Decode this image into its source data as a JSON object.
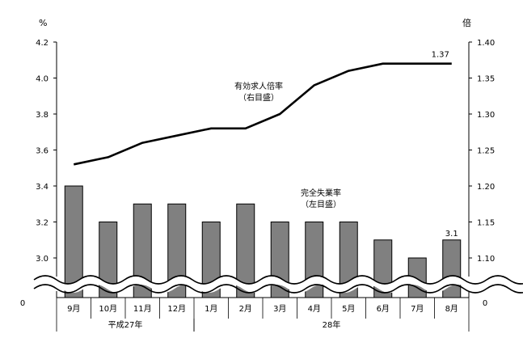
{
  "chart_data": {
    "type": "bar",
    "categories": [
      "9月",
      "10月",
      "11月",
      "12月",
      "1月",
      "2月",
      "3月",
      "4月",
      "5月",
      "6月",
      "7月",
      "8月"
    ],
    "category_groups": [
      {
        "label": "平成27年",
        "start": 0,
        "end": 3
      },
      {
        "label": "28年",
        "start": 4,
        "end": 11
      }
    ],
    "left_axis": {
      "unit": "%",
      "ticks": [
        "4.2",
        "4.0",
        "3.8",
        "3.6",
        "3.4",
        "3.2",
        "3.0"
      ],
      "ylim": [
        2.9,
        4.2
      ],
      "zero_label": "0",
      "broken": true
    },
    "right_axis": {
      "unit": "倍",
      "ticks": [
        "1.40",
        "1.35",
        "1.30",
        "1.25",
        "1.20",
        "1.15",
        "1.10"
      ],
      "ylim": [
        1.065,
        1.4
      ],
      "zero_label": "0",
      "broken": true
    },
    "series": [
      {
        "name": "完全失業率",
        "name_line2": "（左目盛）",
        "type": "bar",
        "axis": "left",
        "color": "#808080",
        "values": [
          3.4,
          3.2,
          3.3,
          3.3,
          3.2,
          3.3,
          3.2,
          3.2,
          3.2,
          3.1,
          3.0,
          3.1
        ],
        "end_label": "3.1"
      },
      {
        "name": "有効求人倍率",
        "name_line2": "（右目盛）",
        "type": "line",
        "axis": "right",
        "color": "#000000",
        "values": [
          1.23,
          1.24,
          1.26,
          1.27,
          1.28,
          1.28,
          1.3,
          1.34,
          1.36,
          1.37,
          1.37,
          1.37
        ],
        "end_label": "1.37"
      }
    ],
    "grid": false,
    "legend": "inline-annotations"
  }
}
